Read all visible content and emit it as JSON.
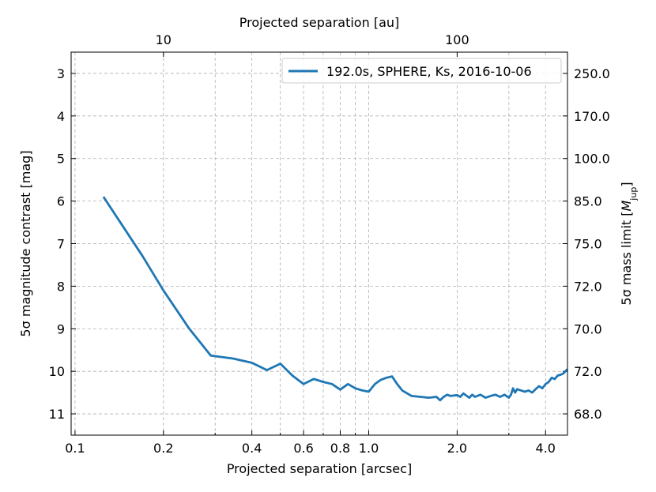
{
  "chart_data": {
    "type": "line",
    "title": "",
    "xlabel": "Projected separation [arcsec]",
    "ylabel": "5σ magnitude contrast [mag]",
    "top_xlabel": "Projected separation [au]",
    "right_ylabel": "5σ mass limit [M_jup]",
    "right_ylabel_main": "5σ mass limit [",
    "right_ylabel_sym": "M",
    "right_ylabel_sub": "jup",
    "right_ylabel_close": "]",
    "xscale": "log",
    "xlim": [
      0.097,
      4.75
    ],
    "ylim": [
      11.5,
      2.5
    ],
    "y_inverted": true,
    "grid": true,
    "legend_position": "top-right",
    "x_major_ticks": [
      {
        "value": 0.1,
        "label": "0.1"
      },
      {
        "value": 0.2,
        "label": "0.2"
      },
      {
        "value": 0.4,
        "label": "0.4"
      },
      {
        "value": 0.6,
        "label": "0.6"
      },
      {
        "value": 0.8,
        "label": "0.8"
      },
      {
        "value": 1.0,
        "label": "1.0"
      },
      {
        "value": 2.0,
        "label": "2.0"
      },
      {
        "value": 4.0,
        "label": "4.0"
      }
    ],
    "x_minor_ticks": [
      0.3,
      0.5,
      0.7,
      0.9,
      3.0
    ],
    "y_ticks": [
      {
        "value": 3,
        "label": "3"
      },
      {
        "value": 4,
        "label": "4"
      },
      {
        "value": 5,
        "label": "5"
      },
      {
        "value": 6,
        "label": "6"
      },
      {
        "value": 7,
        "label": "7"
      },
      {
        "value": 8,
        "label": "8"
      },
      {
        "value": 9,
        "label": "9"
      },
      {
        "value": 10,
        "label": "10"
      },
      {
        "value": 11,
        "label": "11"
      }
    ],
    "right_y_ticks": [
      {
        "value": 3,
        "label": "250.0"
      },
      {
        "value": 4,
        "label": "170.0"
      },
      {
        "value": 5,
        "label": "100.0"
      },
      {
        "value": 6,
        "label": "85.0"
      },
      {
        "value": 7,
        "label": "75.0"
      },
      {
        "value": 8,
        "label": "72.0"
      },
      {
        "value": 9,
        "label": "70.0"
      },
      {
        "value": 10,
        "label": "72.0"
      },
      {
        "value": 11,
        "label": "68.0"
      }
    ],
    "top_x_ticks": [
      {
        "value": 0.2,
        "label": "10"
      },
      {
        "value": 2.0,
        "label": "100"
      }
    ],
    "series": [
      {
        "name": "192.0s, SPHERE, Ks, 2016-10-06",
        "color": "#1f77b4",
        "x": [
          0.125,
          0.17,
          0.2,
          0.245,
          0.29,
          0.345,
          0.4,
          0.45,
          0.49,
          0.5,
          0.55,
          0.6,
          0.65,
          0.7,
          0.75,
          0.8,
          0.85,
          0.9,
          0.95,
          1.0,
          1.05,
          1.1,
          1.15,
          1.2,
          1.25,
          1.3,
          1.4,
          1.5,
          1.6,
          1.7,
          1.75,
          1.8,
          1.85,
          1.9,
          2.0,
          2.05,
          2.1,
          2.2,
          2.25,
          2.3,
          2.4,
          2.5,
          2.6,
          2.7,
          2.8,
          2.9,
          3.0,
          3.05,
          3.1,
          3.15,
          3.2,
          3.3,
          3.4,
          3.5,
          3.6,
          3.7,
          3.8,
          3.9,
          4.0,
          4.1,
          4.2,
          4.3,
          4.4,
          4.5,
          4.6,
          4.75
        ],
        "y": [
          5.9,
          7.3,
          8.1,
          9.0,
          9.63,
          9.7,
          9.8,
          9.97,
          9.85,
          9.82,
          10.1,
          10.3,
          10.18,
          10.25,
          10.3,
          10.43,
          10.3,
          10.4,
          10.45,
          10.48,
          10.3,
          10.2,
          10.15,
          10.12,
          10.3,
          10.45,
          10.58,
          10.6,
          10.62,
          10.6,
          10.68,
          10.6,
          10.55,
          10.58,
          10.56,
          10.6,
          10.52,
          10.62,
          10.55,
          10.6,
          10.55,
          10.62,
          10.58,
          10.55,
          10.6,
          10.55,
          10.62,
          10.55,
          10.4,
          10.5,
          10.42,
          10.45,
          10.48,
          10.45,
          10.5,
          10.42,
          10.35,
          10.4,
          10.3,
          10.25,
          10.15,
          10.18,
          10.1,
          10.08,
          10.05,
          9.95
        ]
      }
    ]
  }
}
